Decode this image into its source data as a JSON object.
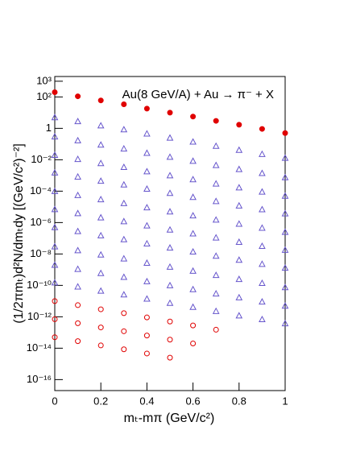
{
  "chart_data": {
    "type": "scatter",
    "title": "Au(8 GeV/A) + Au → π⁻ + X",
    "x_label": "mₜ-mπ (GeV/c²)",
    "y_label": "(1/2πmₜ)d²N/dmₜdy [(GeV/c²)⁻²]",
    "log_y": true,
    "xlim": [
      0,
      1
    ],
    "xticks": [
      0,
      {
        "value": 0.2,
        "label": "0.2"
      },
      {
        "value": 0.4,
        "label": "0.4"
      },
      {
        "value": 0.6,
        "label": "0.6"
      },
      {
        "value": 0.8,
        "label": "0.8"
      },
      1
    ],
    "ylim": [
      2e-17,
      2000
    ],
    "yticks": [
      {
        "value": 1000,
        "label": "10³"
      },
      {
        "value": 100,
        "label": "10²"
      },
      1,
      {
        "value": 0.01,
        "label": "10⁻²"
      },
      {
        "value": 0.0001,
        "label": "10⁻⁴"
      },
      {
        "value": 1e-06,
        "label": "10⁻⁶"
      },
      {
        "value": 1e-08,
        "label": "10⁻⁸"
      },
      {
        "value": 1e-10,
        "label": "10⁻¹⁰"
      },
      {
        "value": 1e-12,
        "label": "10⁻¹²"
      },
      {
        "value": 1e-14,
        "label": "10⁻¹⁴"
      },
      {
        "value": 1e-16,
        "label": "10⁻¹⁶"
      }
    ],
    "x": [
      0,
      0.1,
      0.2,
      0.3,
      0.4,
      0.5,
      0.6,
      0.7,
      0.8,
      0.9,
      1
    ],
    "series": [
      {
        "color": "#e00000",
        "marker": "filled-circle",
        "values": [
          200,
          110,
          60,
          34,
          18,
          10,
          5.6,
          3,
          1.7,
          0.92,
          0.5
        ]
      },
      {
        "color": "#6655cc",
        "marker": "open-triangle",
        "values": [
          5,
          2.8,
          1.5,
          0.85,
          0.46,
          0.25,
          0.14,
          0.075,
          0.042,
          0.023,
          0.013
        ]
      },
      {
        "color": "#6655cc",
        "marker": "open-triangle",
        "values": [
          0.3,
          0.17,
          0.09,
          0.051,
          0.027,
          0.015,
          0.0084,
          0.0045,
          0.0025,
          0.0014,
          0.00075
        ]
      },
      {
        "color": "#6655cc",
        "marker": "open-triangle",
        "values": [
          0.02,
          0.011,
          0.006,
          0.0034,
          0.0018,
          0.001,
          0.00056,
          0.0003,
          0.00017,
          9.2e-05,
          5e-05
        ]
      },
      {
        "color": "#6655cc",
        "marker": "open-triangle",
        "values": [
          0.0015,
          0.00083,
          0.00045,
          0.00026,
          0.00014,
          7.5e-05,
          4.2e-05,
          2.3e-05,
          1.2e-05,
          6.9e-06,
          3.8e-06
        ]
      },
      {
        "color": "#6655cc",
        "marker": "open-triangle",
        "values": [
          0.0001,
          5.5e-05,
          3e-05,
          1.7e-05,
          9.1e-06,
          5e-06,
          2.8e-06,
          1.5e-06,
          8.3e-07,
          4.6e-07,
          2.5e-07
        ]
      },
      {
        "color": "#6655cc",
        "marker": "open-triangle",
        "values": [
          7e-06,
          3.9e-06,
          2.1e-06,
          1.2e-06,
          6.4e-07,
          3.5e-07,
          2e-07,
          1.1e-07,
          5.8e-08,
          3.2e-08,
          1.8e-08
        ]
      },
      {
        "color": "#6655cc",
        "marker": "open-triangle",
        "values": [
          5e-07,
          2.8e-07,
          1.5e-07,
          8.5e-08,
          4.6e-08,
          2.5e-08,
          1.4e-08,
          7.5e-09,
          4.2e-09,
          2.3e-09,
          1.3e-09
        ]
      },
      {
        "color": "#6655cc",
        "marker": "open-triangle",
        "values": [
          3e-08,
          1.7e-08,
          9e-09,
          5.1e-09,
          2.7e-09,
          1.5e-09,
          8.4e-10,
          4.5e-10,
          2.5e-10,
          1.4e-10,
          7.5e-11
        ]
      },
      {
        "color": "#6655cc",
        "marker": "open-triangle",
        "values": [
          2e-09,
          1.1e-09,
          6e-10,
          3.4e-10,
          1.8e-10,
          1e-10,
          5.6e-11,
          3e-11,
          1.7e-11,
          9.2e-12,
          5e-12
        ]
      },
      {
        "color": "#6655cc",
        "marker": "open-triangle",
        "values": [
          1.5e-10,
          8.3e-11,
          4.5e-11,
          2.6e-11,
          1.4e-11,
          7.5e-12,
          4.2e-12,
          2.3e-12,
          1.2e-12,
          6.9e-13,
          3.8e-13
        ]
      },
      {
        "color": "#e00000",
        "marker": "open-circle",
        "values": [
          1e-11,
          5.5e-12,
          3e-12,
          1.7e-12,
          9.1e-13,
          5e-13,
          2.8e-13,
          1.5e-13,
          null,
          null,
          null
        ]
      },
      {
        "color": "#e00000",
        "marker": "open-circle",
        "values": [
          7e-13,
          3.9e-13,
          2.1e-13,
          1.2e-13,
          6.4e-14,
          3.5e-14,
          2e-14,
          null,
          null,
          null,
          null
        ]
      },
      {
        "color": "#e00000",
        "marker": "open-circle",
        "values": [
          5e-14,
          2.8e-14,
          1.5e-14,
          8.5e-15,
          4.6e-15,
          2.5e-15,
          null,
          null,
          null,
          null,
          null
        ]
      }
    ]
  }
}
